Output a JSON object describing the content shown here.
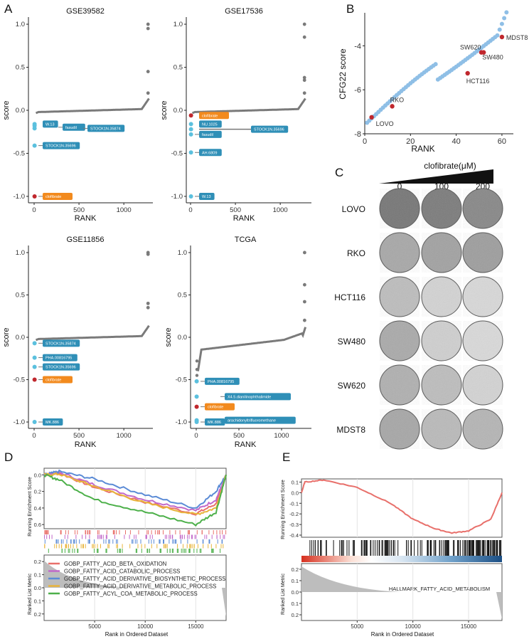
{
  "figure": {
    "panel_labels": [
      "A",
      "B",
      "C",
      "D",
      "E"
    ]
  },
  "panel_a": {
    "xlabel": "RANK",
    "ylabel": "score",
    "yticks": [
      "1.0",
      "0.5",
      "0.0",
      "-0.5",
      "-1.0"
    ],
    "xticks": [
      "0",
      "500",
      "1000"
    ],
    "plots": [
      {
        "title": "GSE39582",
        "labels": [
          {
            "text": "W.13",
            "color": "#2f8fb7",
            "score": -0.16
          },
          {
            "text": "fasudil",
            "color": "#2f8fb7",
            "score": -0.18
          },
          {
            "text": "STOCK1N.35874",
            "color": "#2f8fb7",
            "score": -0.21
          },
          {
            "text": "STOCK1N.35696",
            "color": "#2f8fb7",
            "score": -0.41
          },
          {
            "text": "clofibrate",
            "color": "#f28a1e",
            "score": -1.0
          }
        ]
      },
      {
        "title": "GSE17536",
        "labels": [
          {
            "text": "clofibrate",
            "color": "#f28a1e",
            "score": -0.06
          },
          {
            "text": "NU.1025",
            "color": "#2f8fb7",
            "score": -0.16
          },
          {
            "text": "STOCK1N.35696",
            "color": "#2f8fb7",
            "score": -0.22
          },
          {
            "text": "fasudil",
            "color": "#2f8fb7",
            "score": -0.28
          },
          {
            "text": "AH.6809",
            "color": "#2f8fb7",
            "score": -0.49
          },
          {
            "text": "W.13",
            "color": "#2f8fb7",
            "score": -1.0
          }
        ]
      },
      {
        "title": "GSE11856",
        "labels": [
          {
            "text": "STOCK1N.35874",
            "color": "#2f8fb7",
            "score": -0.07
          },
          {
            "text": "PHA.00816795",
            "color": "#2f8fb7",
            "score": -0.24
          },
          {
            "text": "STOCK1N.35696",
            "color": "#2f8fb7",
            "score": -0.35
          },
          {
            "text": "clofibrate",
            "color": "#f28a1e",
            "score": -0.5
          },
          {
            "text": "MK.886",
            "color": "#2f8fb7",
            "score": -1.0
          }
        ]
      },
      {
        "title": "TCGA",
        "labels": [
          {
            "text": "PHA.00816795",
            "color": "#2f8fb7",
            "score": -0.52
          },
          {
            "text": "X4.5.dianilinophthalimide",
            "color": "#2f8fb7",
            "score": -0.7
          },
          {
            "text": "clofibrate",
            "color": "#f28a1e",
            "score": -0.82
          },
          {
            "text": "arachidonyltrifluoromethane",
            "color": "#2f8fb7",
            "score": -0.98
          },
          {
            "text": "MK.886",
            "color": "#2f8fb7",
            "score": -1.0
          }
        ]
      }
    ]
  },
  "panel_b": {
    "xlabel": "RANK",
    "ylabel": "CFG22 score",
    "yticks": [
      "-4",
      "-6",
      "-8"
    ],
    "xticks": [
      "0",
      "20",
      "40",
      "60"
    ],
    "highlight_color": "#c0272d",
    "point_color": "#8fbfe6",
    "highlights": [
      {
        "text": "LOVO",
        "rank": 3,
        "score": -7.25
      },
      {
        "text": "RKO",
        "rank": 12,
        "score": -6.75
      },
      {
        "text": "HCT116",
        "rank": 45,
        "score": -5.25
      },
      {
        "text": "SW620",
        "rank": 51,
        "score": -4.3
      },
      {
        "text": "SW480",
        "rank": 52,
        "score": -4.3
      },
      {
        "text": "MDST8",
        "rank": 60,
        "score": -3.6
      }
    ]
  },
  "panel_c": {
    "treatment_label": "clofibrate(μM)",
    "concentrations": [
      "0",
      "100",
      "200"
    ],
    "cell_lines": [
      "LOVO",
      "RKO",
      "HCT116",
      "SW480",
      "SW620",
      "MDST8"
    ]
  },
  "panel_d": {
    "ylabel_top": "Running Enrichment Score",
    "ylabel_bottom": "Ranked List Metric",
    "xlabel": "Rank in Ordered Dataset",
    "yticks_top": [
      "0.0",
      "0.2",
      "0.4",
      "0.6"
    ],
    "yticks_bottom": [
      "0.2",
      "0.1",
      "0.0",
      "0.1",
      "0.2"
    ],
    "xticks": [
      "5000",
      "10000",
      "15000"
    ],
    "legend": [
      {
        "label": "GOBP_FATTY_ACID_BETA_OXIDATION",
        "color": "#e8706b"
      },
      {
        "label": "GOBP_FATTY_ACID_CATABOLIC_PROCESS",
        "color": "#c168c9"
      },
      {
        "label": "GOBP_FATTY_ACID_DERIVATIVE_BIOSYNTHETIC_PROCESS",
        "color": "#5b8bd6"
      },
      {
        "label": "GOBP_FATTY_ACID_DERIVATIVE_METABOLIC_PROCESS",
        "color": "#e8b43a"
      },
      {
        "label": "GOBP_FATTY_ACYL_COA_METABOLIC_PROCESS",
        "color": "#4db04a"
      }
    ]
  },
  "panel_e": {
    "ylabel_top": "Running Enrichment Score",
    "ylabel_bottom": "Ranked List Metric",
    "xlabel": "Rank in Ordered Dataset",
    "gene_set": "HALLMARK_FATTY_ACID_METABOLISM",
    "yticks_top": [
      "0.1",
      "0.0",
      "-0.1",
      "-0.2",
      "-0.3",
      "-0.4"
    ],
    "yticks_bottom": [
      "0.2",
      "0.1",
      "0.0",
      "0.1",
      "0.2"
    ],
    "xticks": [
      "5000",
      "10000",
      "15000"
    ],
    "curve_color": "#e8706b"
  },
  "chart_data": [
    {
      "type": "scatter",
      "title": "GSE39582",
      "xlabel": "RANK",
      "ylabel": "score",
      "xlim": [
        0,
        1300
      ],
      "ylim": [
        -1.05,
        1.05
      ],
      "extreme_high": [
        1.0,
        0.95,
        0.45,
        0.2
      ],
      "labelled_low": [
        -0.16,
        -0.18,
        -0.21,
        -0.41,
        -1.0
      ]
    },
    {
      "type": "scatter",
      "title": "GSE17536",
      "xlabel": "RANK",
      "ylabel": "score",
      "xlim": [
        0,
        1300
      ],
      "ylim": [
        -1.05,
        1.05
      ],
      "extreme_high": [
        1.0,
        0.85,
        0.38,
        0.35,
        0.2
      ],
      "labelled_low": [
        -0.06,
        -0.16,
        -0.22,
        -0.28,
        -0.49,
        -1.0
      ]
    },
    {
      "type": "scatter",
      "title": "GSE11856",
      "xlabel": "RANK",
      "ylabel": "score",
      "xlim": [
        0,
        1300
      ],
      "ylim": [
        -1.05,
        1.05
      ],
      "extreme_high": [
        1.0,
        0.98,
        0.4,
        0.35
      ],
      "labelled_low": [
        -0.07,
        -0.24,
        -0.35,
        -0.5,
        -1.0
      ]
    },
    {
      "type": "scatter",
      "title": "TCGA",
      "xlabel": "RANK",
      "ylabel": "score",
      "xlim": [
        0,
        1300
      ],
      "ylim": [
        -1.05,
        1.05
      ],
      "extreme_high": [
        1.0,
        0.62,
        0.42,
        0.2
      ],
      "labelled_low": [
        -0.3,
        -0.52,
        -0.7,
        -0.82,
        -0.98,
        -1.0
      ]
    },
    {
      "type": "scatter",
      "title": "",
      "xlabel": "RANK",
      "ylabel": "CFG22 score",
      "xlim": [
        0,
        65
      ],
      "ylim": [
        -8,
        -2.5
      ],
      "x_range_points": [
        1,
        62
      ],
      "y_range_points": [
        -7.5,
        -2.7
      ]
    },
    {
      "type": "line",
      "title": "",
      "xlabel": "Rank in Ordered Dataset",
      "ylabel": "Running Enrichment Score",
      "xlim": [
        0,
        18000
      ],
      "ylim": [
        -0.65,
        0.08
      ],
      "series": [
        {
          "name": "GOBP_FATTY_ACID_BETA_OXIDATION",
          "x": [
            0,
            1500,
            5000,
            10000,
            15000,
            17000,
            18000
          ],
          "values": [
            0.0,
            0.02,
            -0.15,
            -0.33,
            -0.47,
            -0.35,
            0.0
          ]
        },
        {
          "name": "GOBP_FATTY_ACID_CATABOLIC_PROCESS",
          "x": [
            0,
            1500,
            5000,
            10000,
            15000,
            17000,
            18000
          ],
          "values": [
            0.0,
            0.03,
            -0.12,
            -0.3,
            -0.43,
            -0.3,
            0.0
          ]
        },
        {
          "name": "GOBP_FATTY_ACID_DERIVATIVE_BIOSYNTHETIC_PROCESS",
          "x": [
            0,
            1500,
            5000,
            10000,
            15000,
            17000,
            18000
          ],
          "values": [
            0.0,
            0.04,
            -0.05,
            -0.24,
            -0.4,
            -0.2,
            0.0
          ]
        },
        {
          "name": "GOBP_FATTY_ACID_DERIVATIVE_METABOLIC_PROCESS",
          "x": [
            0,
            1500,
            5000,
            10000,
            15000,
            17000,
            18000
          ],
          "values": [
            0.0,
            0.01,
            -0.14,
            -0.34,
            -0.48,
            -0.4,
            0.0
          ]
        },
        {
          "name": "GOBP_FATTY_ACYL_COA_METABOLIC_PROCESS",
          "x": [
            0,
            1500,
            5000,
            10000,
            15000,
            17000,
            18000
          ],
          "values": [
            0.0,
            -0.06,
            -0.3,
            -0.45,
            -0.6,
            -0.45,
            0.0
          ]
        }
      ]
    },
    {
      "type": "line",
      "title": "HALLMARK_FATTY_ACID_METABOLISM",
      "xlabel": "Rank in Ordered Dataset",
      "ylabel": "Running Enrichment Score",
      "xlim": [
        0,
        18000
      ],
      "ylim": [
        -0.42,
        0.13
      ],
      "series": [
        {
          "name": "HALLMARK_FATTY_ACID_METABOLISM",
          "x": [
            0,
            300,
            2000,
            5000,
            8000,
            10000,
            12000,
            13500,
            15000,
            17000,
            18000
          ],
          "values": [
            0.0,
            0.1,
            0.12,
            0.05,
            -0.1,
            -0.25,
            -0.34,
            -0.38,
            -0.36,
            -0.25,
            0.0
          ]
        }
      ]
    }
  ]
}
